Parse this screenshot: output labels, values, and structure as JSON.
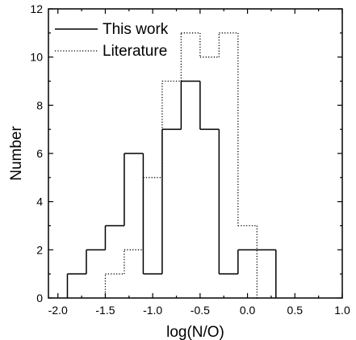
{
  "chart_data": {
    "type": "histogram",
    "title": "",
    "xlabel": "log(N/O)",
    "ylabel": "Number",
    "xlim": [
      -2.1,
      1.0
    ],
    "ylim": [
      0,
      12
    ],
    "x_ticks": [
      "-2.0",
      "-1.5",
      "-1.0",
      "-0.5",
      "0.0",
      "0.5",
      "1.0"
    ],
    "x_tick_values": [
      -2.0,
      -1.5,
      -1.0,
      -0.5,
      0.0,
      0.5,
      1.0
    ],
    "y_ticks": [
      "0",
      "2",
      "4",
      "6",
      "8",
      "10",
      "12"
    ],
    "y_tick_values": [
      0,
      2,
      4,
      6,
      8,
      10,
      12
    ],
    "grid": false,
    "legend_position": "top-left",
    "bin_edges": [
      -1.9,
      -1.7,
      -1.5,
      -1.3,
      -1.1,
      -0.9,
      -0.7,
      -0.5,
      -0.3,
      -0.1,
      0.1,
      0.3
    ],
    "series": [
      {
        "name": "This work",
        "line_style": "solid",
        "color": "#000000",
        "values": [
          1,
          2,
          3,
          6,
          1,
          7,
          9,
          7,
          1,
          2,
          2
        ]
      },
      {
        "name": "Literature",
        "line_style": "dotted",
        "color": "#000000",
        "values": [
          0,
          0,
          1,
          2,
          5,
          9,
          11,
          10,
          11,
          3,
          0
        ]
      }
    ]
  }
}
